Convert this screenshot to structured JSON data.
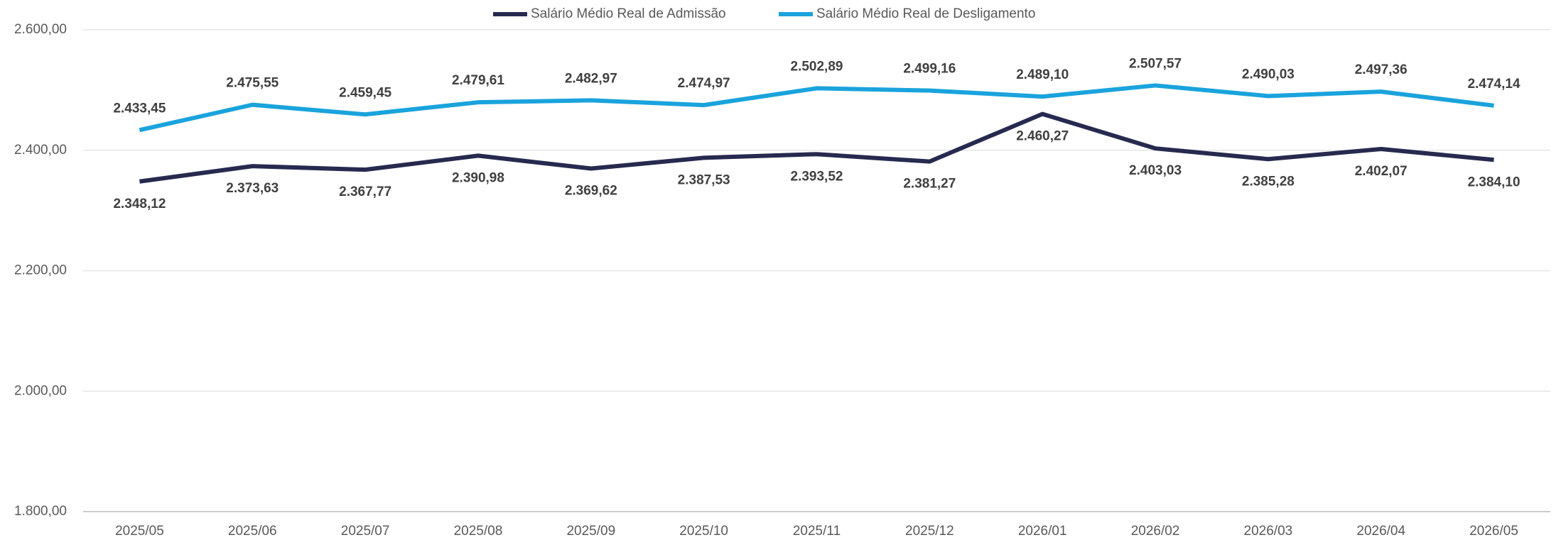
{
  "chart_data": {
    "type": "line",
    "categories": [
      "2025/05",
      "2025/06",
      "2025/07",
      "2025/08",
      "2025/09",
      "2025/10",
      "2025/11",
      "2025/12",
      "2026/01",
      "2026/02",
      "2026/03",
      "2026/04",
      "2026/05"
    ],
    "series": [
      {
        "name": "Salário Médio Real de Admissão",
        "color": "#262a4f",
        "values": [
          2348.12,
          2373.63,
          2367.77,
          2390.98,
          2369.62,
          2387.53,
          2393.52,
          2381.27,
          2460.27,
          2403.03,
          2385.28,
          2402.07,
          2384.1
        ],
        "value_labels": [
          "2.348,12",
          "2.373,63",
          "2.367,77",
          "2.390,98",
          "2.369,62",
          "2.387,53",
          "2.393,52",
          "2.381,27",
          "2.460,27",
          "2.403,03",
          "2.385,28",
          "2.402,07",
          "2.384,10"
        ]
      },
      {
        "name": "Salário Médio Real de Desligamento",
        "color": "#1aa3dc",
        "values": [
          2433.45,
          2475.55,
          2459.45,
          2479.61,
          2482.97,
          2474.97,
          2502.89,
          2499.16,
          2489.1,
          2507.57,
          2490.03,
          2497.36,
          2474.14
        ],
        "value_labels": [
          "2.433,45",
          "2.475,55",
          "2.459,45",
          "2.479,61",
          "2.482,97",
          "2.474,97",
          "2.502,89",
          "2.499,16",
          "2.489,10",
          "2.507,57",
          "2.490,03",
          "2.497,36",
          "2.474,14"
        ]
      }
    ],
    "ylim": [
      1800,
      2600
    ],
    "yticks": [
      {
        "value": 1800,
        "label": "1.800,00"
      },
      {
        "value": 2000,
        "label": "2.000,00"
      },
      {
        "value": 2200,
        "label": "2.200,00"
      },
      {
        "value": 2400,
        "label": "2.400,00"
      },
      {
        "value": 2600,
        "label": "2.600,00"
      }
    ],
    "grid": true,
    "legend": "top"
  }
}
